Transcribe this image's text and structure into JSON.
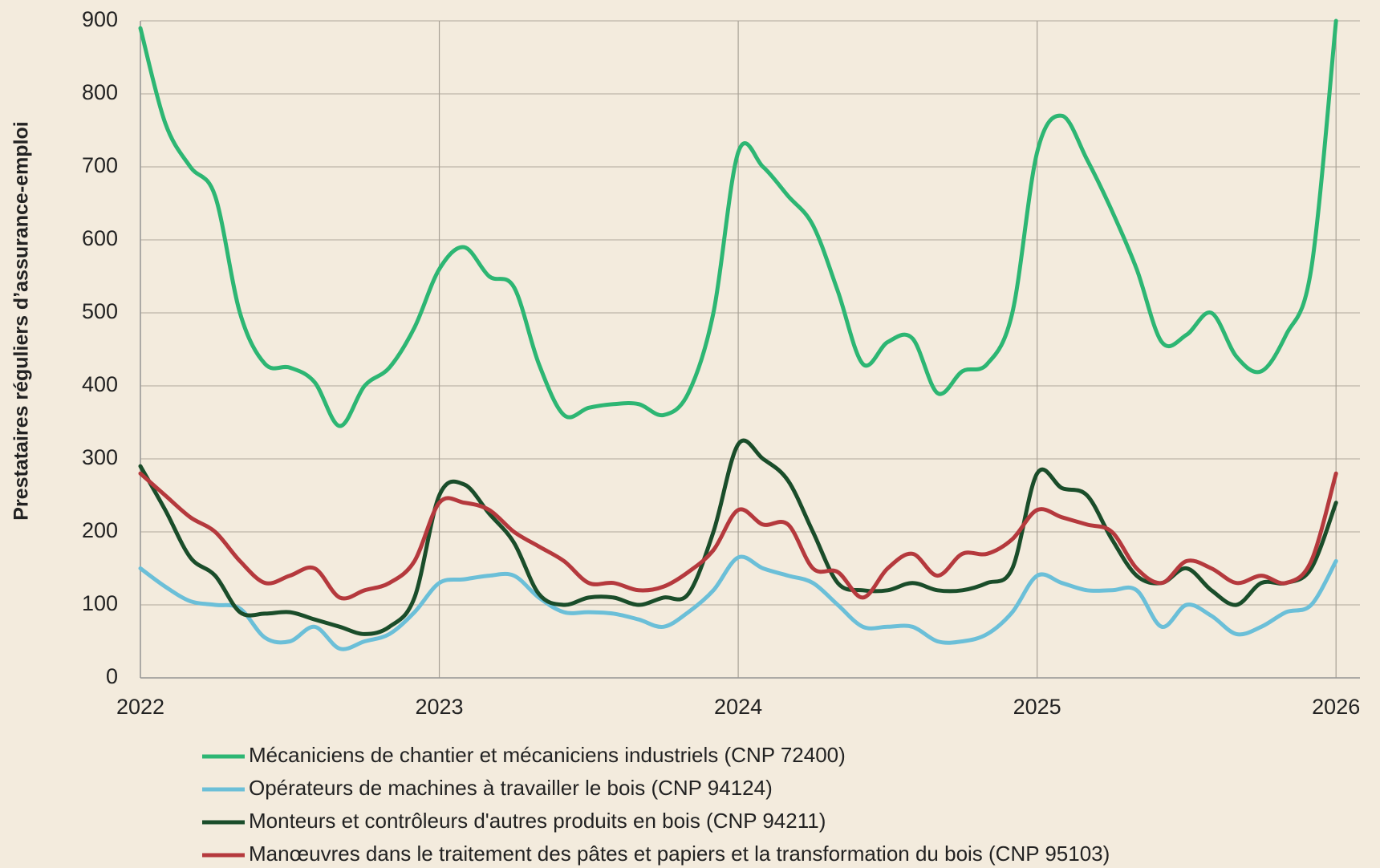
{
  "chart_data": {
    "type": "line",
    "y_label": "Prestataires réguliers d’assurance-emploi",
    "x": [
      2022,
      2022.083,
      2022.167,
      2022.25,
      2022.333,
      2022.417,
      2022.5,
      2022.583,
      2022.667,
      2022.75,
      2022.833,
      2022.917,
      2023,
      2023.083,
      2023.167,
      2023.25,
      2023.333,
      2023.417,
      2023.5,
      2023.583,
      2023.667,
      2023.75,
      2023.833,
      2023.917,
      2024,
      2024.083,
      2024.167,
      2024.25,
      2024.333,
      2024.417,
      2024.5,
      2024.583,
      2024.667,
      2024.75,
      2024.833,
      2024.917,
      2025,
      2025.083,
      2025.167,
      2025.25,
      2025.333,
      2025.417,
      2025.5,
      2025.583,
      2025.667,
      2025.75,
      2025.833,
      2025.917,
      2026
    ],
    "series": [
      {
        "name": "Mécaniciens de chantier et mécaniciens industriels (CNP 72400)",
        "color": "#2db673",
        "values": [
          890,
          760,
          700,
          660,
          500,
          430,
          425,
          405,
          345,
          400,
          425,
          480,
          560,
          590,
          550,
          535,
          430,
          360,
          370,
          375,
          375,
          360,
          390,
          500,
          720,
          700,
          660,
          620,
          530,
          430,
          460,
          465,
          390,
          420,
          430,
          500,
          720,
          770,
          710,
          640,
          560,
          460,
          470,
          500,
          440,
          420,
          470,
          560,
          900
        ]
      },
      {
        "name": "Opérateurs de machines à travailler le bois (CNP 94124)",
        "color": "#6bbfd8",
        "values": [
          150,
          125,
          105,
          100,
          95,
          55,
          50,
          70,
          40,
          50,
          60,
          90,
          130,
          135,
          140,
          140,
          110,
          90,
          90,
          88,
          80,
          70,
          90,
          120,
          165,
          150,
          140,
          130,
          100,
          70,
          70,
          70,
          50,
          50,
          60,
          90,
          140,
          130,
          120,
          120,
          120,
          70,
          100,
          85,
          60,
          70,
          90,
          100,
          160
        ]
      },
      {
        "name": "Monteurs et contrôleurs d'autres produits en bois (CNP 94211)",
        "color": "#1a4d2a",
        "values": [
          290,
          230,
          165,
          140,
          90,
          88,
          90,
          80,
          70,
          60,
          70,
          110,
          250,
          265,
          225,
          185,
          115,
          100,
          110,
          110,
          100,
          110,
          115,
          200,
          320,
          300,
          270,
          200,
          130,
          120,
          120,
          130,
          120,
          120,
          130,
          150,
          280,
          260,
          250,
          190,
          140,
          130,
          150,
          120,
          100,
          130,
          130,
          150,
          240
        ]
      },
      {
        "name": "Manœuvres dans le traitement des pâtes et papiers et la transformation du bois (CNP 95103)",
        "color": "#b5393d",
        "values": [
          280,
          250,
          220,
          200,
          160,
          130,
          140,
          150,
          110,
          120,
          130,
          160,
          240,
          240,
          230,
          200,
          180,
          160,
          130,
          130,
          120,
          125,
          145,
          175,
          230,
          210,
          210,
          150,
          145,
          110,
          150,
          170,
          140,
          170,
          170,
          190,
          230,
          220,
          210,
          200,
          150,
          130,
          160,
          150,
          130,
          140,
          130,
          160,
          280
        ]
      }
    ],
    "xlim": [
      2022,
      2026.08
    ],
    "xticks": [
      2022,
      2023,
      2024,
      2025,
      2026
    ],
    "ylim": [
      0,
      900
    ],
    "yticks": [
      0,
      100,
      200,
      300,
      400,
      500,
      600,
      700,
      800,
      900
    ],
    "grid": true
  }
}
